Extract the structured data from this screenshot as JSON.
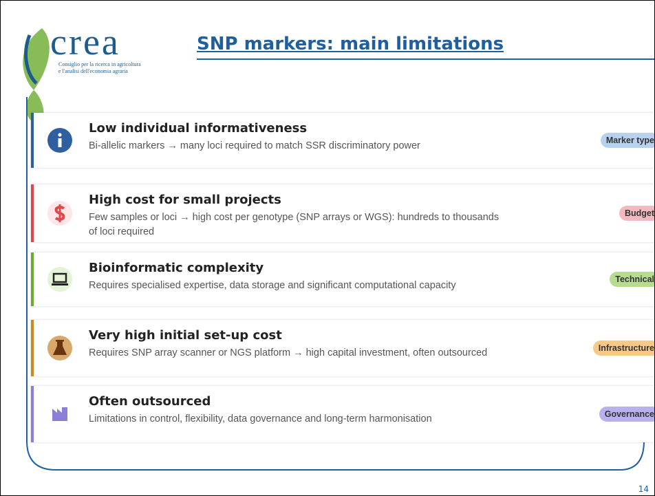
{
  "header": {
    "logo": {
      "name": "crea",
      "tagline": [
        "Consiglio per la ricerca in agricoltura",
        "e l'analisi dell'economia agraria"
      ]
    },
    "title": "SNP markers: main limitations"
  },
  "items": [
    {
      "heading": "Low individual informativeness",
      "description": "Bi-allelic markers → many loci required to match SSR discriminatory power",
      "tag": "Marker type",
      "color": "#2f5f9e",
      "tag_color": "#b8d1ee"
    },
    {
      "heading": "High cost for small projects",
      "description": "Few samples or loci → high cost per genotype (SNP arrays or WGS): hundreds to thousands of loci required",
      "tag": "Budget",
      "color": "#e0474c",
      "tag_color": "#f4b9be"
    },
    {
      "heading": "Bioinformatic complexity",
      "description": "Requires specialised expertise, data storage and significant computational capacity",
      "tag": "Technical",
      "color": "#6aab2e",
      "tag_color": "#b5dc8f"
    },
    {
      "heading": "Very high initial set-up cost",
      "description": "Requires SNP array scanner or NGS platform → high capital investment, often outsourced",
      "tag": "Infrastructure",
      "color": "#c98a1f",
      "tag_color": "#f7c886"
    },
    {
      "heading": "Often outsourced",
      "description": "Limitations in control, flexibility, data governance and long-term harmonisation",
      "tag": "Governance",
      "color": "#8a7fd6",
      "tag_color": "#b9b1ee"
    }
  ],
  "page_number": "14"
}
